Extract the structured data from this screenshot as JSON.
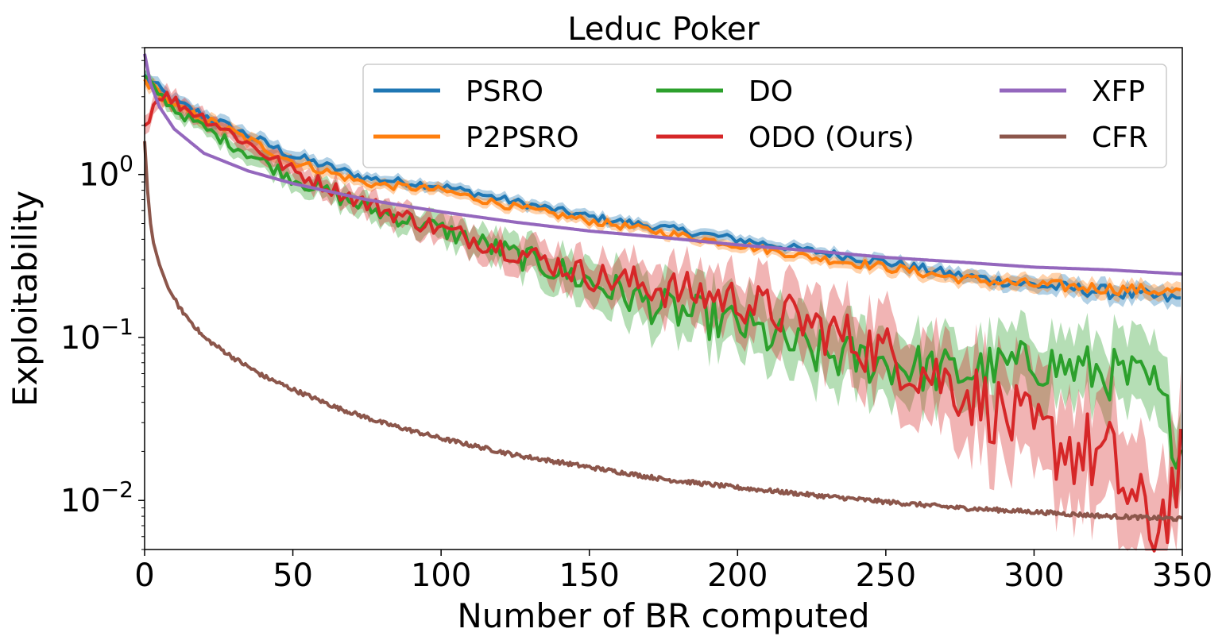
{
  "chart_data": {
    "type": "line",
    "title": "Leduc Poker",
    "xlabel": "Number of BR computed",
    "ylabel": "Exploitability",
    "xlim": [
      0,
      350
    ],
    "ylim": [
      0.005,
      6
    ],
    "yscale": "log",
    "grid": false,
    "legend_position": "top-right",
    "x_ticks": [
      0,
      50,
      100,
      150,
      200,
      250,
      300,
      350
    ],
    "x_tick_labels": [
      "0",
      "50",
      "100",
      "150",
      "200",
      "250",
      "300",
      "350"
    ],
    "y_ticks": [
      1,
      0.1,
      0.01
    ],
    "y_tick_labels": [
      {
        "base": "10",
        "exp": "0"
      },
      {
        "base": "10",
        "exp": "−1"
      },
      {
        "base": "10",
        "exp": "−2"
      }
    ],
    "series": [
      {
        "name": "PSRO",
        "color": "#1f77b4",
        "x": [
          0,
          10,
          25,
          50,
          75,
          100,
          125,
          150,
          175,
          200,
          225,
          250,
          275,
          300,
          325,
          350
        ],
        "y": [
          4.0,
          2.8,
          2.1,
          1.3,
          0.95,
          0.85,
          0.68,
          0.55,
          0.47,
          0.4,
          0.34,
          0.29,
          0.24,
          0.21,
          0.19,
          0.17
        ],
        "band": [
          0.1,
          0.1,
          0.1,
          0.1,
          0.08,
          0.08,
          0.08,
          0.08,
          0.08,
          0.08,
          0.08,
          0.1,
          0.1,
          0.12,
          0.14,
          0.14
        ]
      },
      {
        "name": "P2PSRO",
        "color": "#ff7f0e",
        "x": [
          0,
          10,
          25,
          50,
          75,
          100,
          125,
          150,
          175,
          200,
          225,
          250,
          275,
          300,
          325,
          350
        ],
        "y": [
          3.8,
          2.6,
          2.0,
          1.2,
          0.88,
          0.8,
          0.63,
          0.52,
          0.44,
          0.37,
          0.31,
          0.27,
          0.23,
          0.21,
          0.2,
          0.19
        ],
        "band": [
          0.1,
          0.1,
          0.1,
          0.1,
          0.08,
          0.08,
          0.08,
          0.08,
          0.08,
          0.08,
          0.08,
          0.1,
          0.1,
          0.12,
          0.12,
          0.12
        ]
      },
      {
        "name": "DO",
        "color": "#2ca02c",
        "x": [
          0,
          10,
          25,
          50,
          75,
          100,
          125,
          150,
          175,
          200,
          225,
          250,
          275,
          300,
          325,
          340,
          350
        ],
        "y": [
          3.9,
          2.5,
          1.7,
          0.95,
          0.62,
          0.46,
          0.32,
          0.22,
          0.15,
          0.12,
          0.08,
          0.07,
          0.06,
          0.07,
          0.06,
          0.05,
          0.02
        ],
        "band": [
          0.1,
          0.1,
          0.12,
          0.15,
          0.18,
          0.2,
          0.25,
          0.35,
          0.4,
          0.45,
          0.5,
          0.5,
          0.5,
          0.5,
          0.55,
          0.6,
          0.6
        ]
      },
      {
        "name": "ODO (Ours)",
        "color": "#d62728",
        "x": [
          0,
          5,
          10,
          25,
          50,
          75,
          100,
          125,
          150,
          175,
          200,
          225,
          250,
          275,
          300,
          325,
          340,
          350
        ],
        "y": [
          2.0,
          3.2,
          2.8,
          2.0,
          1.05,
          0.66,
          0.46,
          0.34,
          0.24,
          0.2,
          0.17,
          0.12,
          0.08,
          0.05,
          0.025,
          0.018,
          0.006,
          0.016
        ],
        "band": [
          0.15,
          0.15,
          0.15,
          0.12,
          0.15,
          0.18,
          0.2,
          0.25,
          0.3,
          0.4,
          0.45,
          0.5,
          0.6,
          0.7,
          0.8,
          0.9,
          0.9,
          0.9
        ]
      },
      {
        "name": "XFP",
        "color": "#9467bd",
        "x": [
          0,
          2,
          5,
          10,
          20,
          35,
          50,
          75,
          100,
          125,
          150,
          175,
          200,
          225,
          250,
          275,
          300,
          325,
          350
        ],
        "y": [
          5.5,
          3.6,
          2.6,
          1.9,
          1.35,
          1.05,
          0.88,
          0.7,
          0.59,
          0.51,
          0.45,
          0.41,
          0.37,
          0.34,
          0.31,
          0.29,
          0.27,
          0.26,
          0.245
        ],
        "band": null
      },
      {
        "name": "CFR",
        "color": "#8c564b",
        "x": [
          0,
          1,
          2,
          3,
          5,
          8,
          12,
          20,
          30,
          40,
          50,
          65,
          80,
          100,
          125,
          150,
          175,
          200,
          225,
          250,
          275,
          300,
          325,
          350
        ],
        "y": [
          1.6,
          0.8,
          0.5,
          0.38,
          0.28,
          0.2,
          0.15,
          0.1,
          0.075,
          0.058,
          0.048,
          0.037,
          0.03,
          0.024,
          0.019,
          0.016,
          0.0135,
          0.012,
          0.0108,
          0.0098,
          0.009,
          0.0085,
          0.008,
          0.0077
        ],
        "band": null
      }
    ]
  }
}
